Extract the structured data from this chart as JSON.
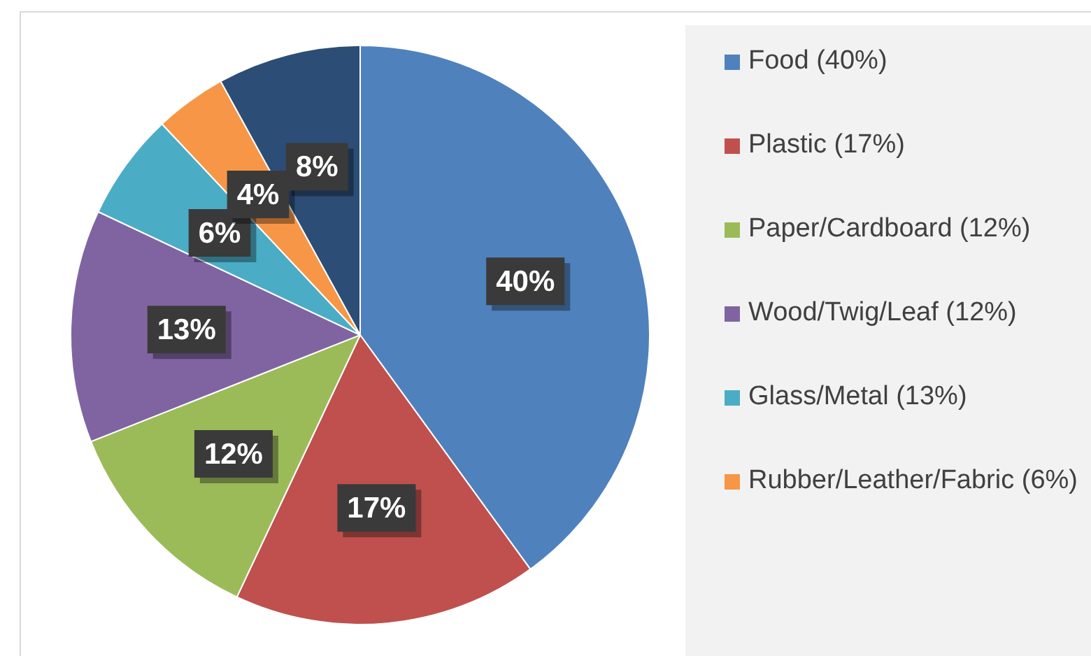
{
  "chart_data": {
    "type": "pie",
    "categories": [
      "Food (40%)",
      "Plastic (17%)",
      "Paper/Cardboard (12%)",
      "Wood/Twig/Leaf (12%)",
      "Glass/Metal (13%)",
      "Rubber/Leather/Fabric (6%)",
      null
    ],
    "values": [
      40,
      17,
      12,
      13,
      6,
      4,
      8
    ],
    "colors": [
      "#4f81bd",
      "#c0504d",
      "#9bbb59",
      "#8064a2",
      "#4bacc6",
      "#f79646",
      "#2c4d75"
    ],
    "value_labels": [
      "40%",
      "17%",
      "12%",
      "13%",
      "6%",
      "4%",
      "8%"
    ],
    "legend": "right"
  }
}
